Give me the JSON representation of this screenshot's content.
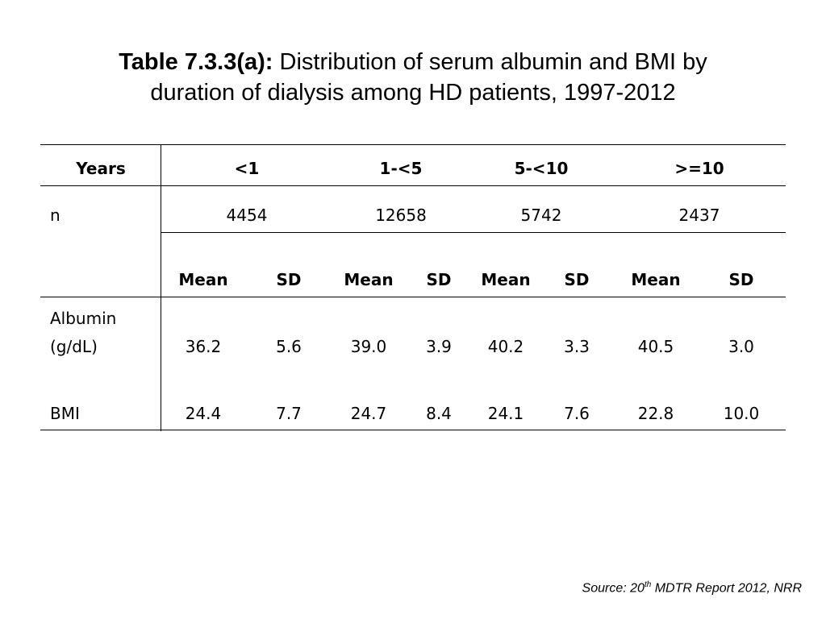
{
  "title": {
    "bold": "Table 7.3.3(a):",
    "line1": " Distribution of serum albumin and BMI by",
    "line2": "duration of dialysis among HD patients, 1997-2012"
  },
  "table": {
    "years_label": "Years",
    "year_groups": [
      "<1",
      "1-<5",
      "5-<10",
      ">=10"
    ],
    "n_label": "n",
    "n_values": [
      "4454",
      "12658",
      "5742",
      "2437"
    ],
    "stat_headers": [
      "Mean",
      "SD",
      "Mean",
      "SD",
      "Mean",
      "SD",
      "Mean",
      "SD"
    ],
    "rows": [
      {
        "label_line1": "Albumin",
        "label_line2": "(g/dL)",
        "values": [
          "36.2",
          "5.6",
          "39.0",
          "3.9",
          "40.2",
          "3.3",
          "40.5",
          "3.0"
        ]
      },
      {
        "label_line1": "BMI",
        "values": [
          "24.4",
          "7.7",
          "24.7",
          "8.4",
          "24.1",
          "7.6",
          "22.8",
          "10.0"
        ]
      }
    ]
  },
  "source": {
    "prefix": "Source: 20",
    "sup": "th",
    "suffix": " MDTR Report 2012, NRR"
  }
}
